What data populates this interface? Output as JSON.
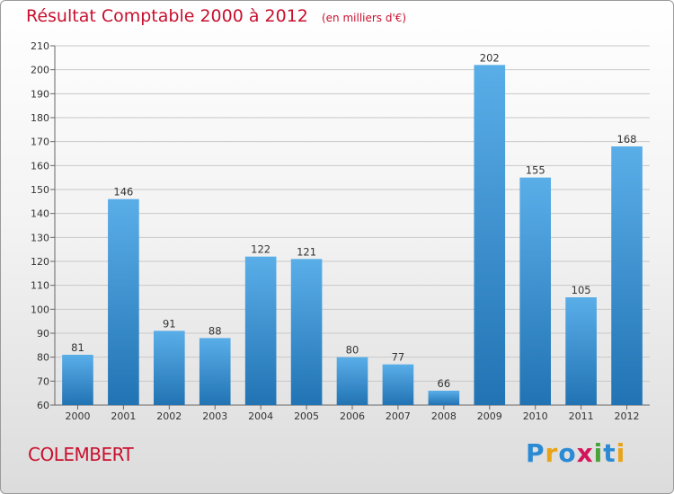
{
  "header": {
    "title": "Résultat Comptable 2000 à 2012",
    "unit": "(en milliers d'€)"
  },
  "footer": {
    "commune": "COLEMBERT",
    "logo": {
      "text": "Proxiti",
      "letters": [
        "P",
        "r",
        "o",
        "x",
        "i",
        "t",
        "i"
      ],
      "colors": [
        "#2a8ad4",
        "#e8a317",
        "#2a8ad4",
        "#d4145a",
        "#4aa33c",
        "#2a8ad4",
        "#e8a317"
      ]
    }
  },
  "colors": {
    "title": "#c8102e",
    "bar_top": "#5aaee8",
    "bar_bottom": "#2173b3",
    "grid": "#c8c8c8"
  },
  "chart_data": {
    "type": "bar",
    "categories": [
      "2000",
      "2001",
      "2002",
      "2003",
      "2004",
      "2005",
      "2006",
      "2007",
      "2008",
      "2009",
      "2010",
      "2011",
      "2012"
    ],
    "values": [
      81,
      146,
      91,
      88,
      122,
      121,
      80,
      77,
      66,
      202,
      155,
      105,
      168
    ],
    "title": "Résultat Comptable 2000 à 2012",
    "subtitle": "(en milliers d'€)",
    "xlabel": "",
    "ylabel": "",
    "ylim": [
      60,
      210
    ],
    "yticks": [
      60,
      70,
      80,
      90,
      100,
      110,
      120,
      130,
      140,
      150,
      160,
      170,
      180,
      190,
      200,
      210
    ],
    "grid": true,
    "legend": "none"
  }
}
